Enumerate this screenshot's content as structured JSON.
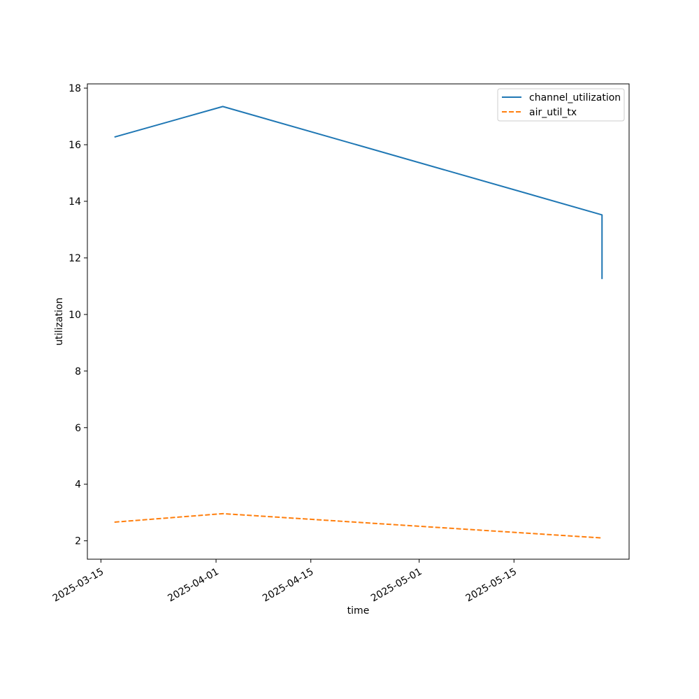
{
  "chart_data": {
    "type": "line",
    "title": "",
    "xlabel": "time",
    "ylabel": "utilization",
    "x_ticks": [
      "2025-03-15",
      "2025-04-01",
      "2025-04-15",
      "2025-05-01",
      "2025-05-15"
    ],
    "y_ticks": [
      2,
      4,
      6,
      8,
      10,
      12,
      14,
      16,
      18
    ],
    "xlim": [
      "2025-03-13",
      "2025-06-01"
    ],
    "ylim": [
      1.35,
      18.15
    ],
    "grid": false,
    "legend": {
      "position": "top-right"
    },
    "series": [
      {
        "name": "channel_utilization",
        "color": "#1f77b4",
        "dash": "solid",
        "points": [
          {
            "x": "2025-03-17",
            "y": 16.27
          },
          {
            "x": "2025-04-02",
            "y": 17.35
          },
          {
            "x": "2025-05-28",
            "y": 13.52
          },
          {
            "x": "2025-05-28",
            "y": 11.25
          }
        ]
      },
      {
        "name": "air_util_tx",
        "color": "#ff7f0e",
        "dash": "dashed",
        "points": [
          {
            "x": "2025-03-17",
            "y": 2.66
          },
          {
            "x": "2025-04-02",
            "y": 2.96
          },
          {
            "x": "2025-05-28",
            "y": 2.1
          }
        ]
      }
    ]
  }
}
